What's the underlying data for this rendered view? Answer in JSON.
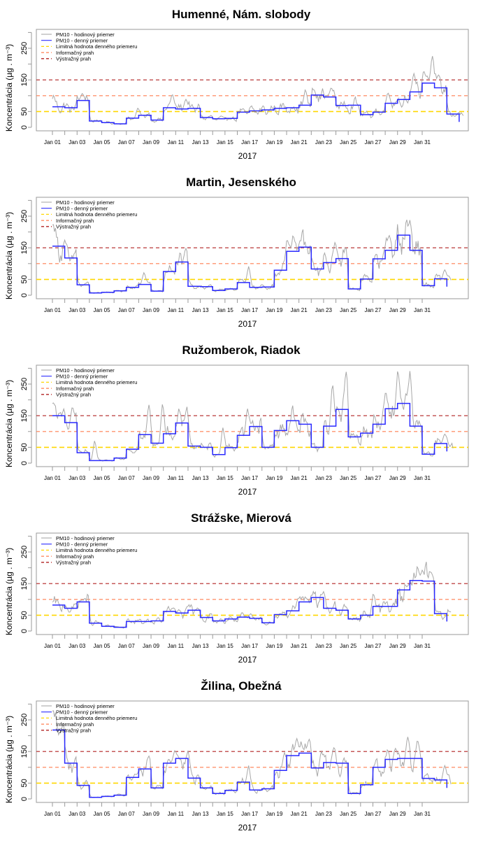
{
  "chart_data": [
    {
      "type": "line",
      "title": "Humenné, Nám. slobody",
      "xlabel": "2017",
      "ylabel": "Koncentrácia (µg . m⁻³)",
      "ylim": [
        0,
        310
      ],
      "yticks": [
        0,
        50,
        150,
        250
      ],
      "ytick_labels": [
        "0",
        "50",
        "150",
        "250"
      ],
      "xticks": [
        "Jan 01",
        "Jan 03",
        "Jan 05",
        "Jan 07",
        "Jan 09",
        "Jan 11",
        "Jan 13",
        "Jan 15",
        "Jan 17",
        "Jan 19",
        "Jan 21",
        "Jan 23",
        "Jan 25",
        "Jan 27",
        "Jan 29",
        "Jan 31"
      ],
      "x_range_days": [
        0,
        33
      ],
      "thresholds": [
        {
          "name": "Limitná hodnota denného priemeru",
          "value": 50,
          "color": "#ffd700"
        },
        {
          "name": "Informačný prah",
          "value": 100,
          "color": "#ff7f50"
        },
        {
          "name": "Výstražný prah",
          "value": 150,
          "color": "#b22222"
        }
      ],
      "daily_mean": [
        65,
        62,
        85,
        20,
        15,
        11,
        29,
        38,
        23,
        62,
        58,
        60,
        31,
        27,
        28,
        48,
        52,
        55,
        60,
        62,
        70,
        102,
        96,
        69,
        70,
        40,
        48,
        76,
        88,
        112,
        140,
        125,
        42
      ],
      "hourly_peaks": [
        {
          "day": 0.05,
          "value": 113
        },
        {
          "day": 2.4,
          "value": 112
        },
        {
          "day": 6.9,
          "value": 68
        },
        {
          "day": 9.7,
          "value": 115
        },
        {
          "day": 10.8,
          "value": 97
        },
        {
          "day": 20.5,
          "value": 128
        },
        {
          "day": 22.6,
          "value": 132
        },
        {
          "day": 27.2,
          "value": 118
        },
        {
          "day": 29.3,
          "value": 186
        },
        {
          "day": 30.8,
          "value": 248
        },
        {
          "day": 30.1,
          "value": 190
        }
      ],
      "hourly_end_day": 33.4
    },
    {
      "type": "line",
      "title": "Martin, Jesenského",
      "xlabel": "2017",
      "ylabel": "Koncentrácia (µg . m⁻³)",
      "ylim": [
        0,
        310
      ],
      "yticks": [
        0,
        50,
        150,
        250
      ],
      "ytick_labels": [
        "0",
        "50",
        "150",
        "250"
      ],
      "xticks": [
        "Jan 01",
        "Jan 03",
        "Jan 05",
        "Jan 07",
        "Jan 09",
        "Jan 11",
        "Jan 13",
        "Jan 15",
        "Jan 17",
        "Jan 19",
        "Jan 21",
        "Jan 23",
        "Jan 25",
        "Jan 27",
        "Jan 29",
        "Jan 31"
      ],
      "x_range_days": [
        0,
        33
      ],
      "thresholds": [
        {
          "name": "Limitná hodnota denného priemeru",
          "value": 50,
          "color": "#ffd700"
        },
        {
          "name": "Informačný prah",
          "value": 100,
          "color": "#ff7f50"
        },
        {
          "name": "Výstražný prah",
          "value": 150,
          "color": "#b22222"
        }
      ],
      "daily_mean": [
        155,
        118,
        33,
        7,
        9,
        14,
        25,
        34,
        13,
        75,
        105,
        28,
        27,
        15,
        20,
        40,
        25,
        26,
        79,
        139,
        152,
        83,
        103,
        116,
        20,
        51,
        115,
        142,
        190,
        142,
        30,
        52
      ],
      "hourly_peaks": [
        {
          "day": 0.0,
          "value": 258
        },
        {
          "day": 1.0,
          "value": 180
        },
        {
          "day": 7.4,
          "value": 80
        },
        {
          "day": 10.8,
          "value": 160
        },
        {
          "day": 15.9,
          "value": 103
        },
        {
          "day": 19.0,
          "value": 190
        },
        {
          "day": 20.1,
          "value": 180
        },
        {
          "day": 22.9,
          "value": 180
        },
        {
          "day": 27.3,
          "value": 200
        },
        {
          "day": 29.0,
          "value": 245
        },
        {
          "day": 31.8,
          "value": 88
        }
      ],
      "hourly_end_day": 32.4
    },
    {
      "type": "line",
      "title": "Ružomberok, Riadok",
      "xlabel": "2017",
      "ylabel": "Koncentrácia (µg . m⁻³)",
      "ylim": [
        0,
        310
      ],
      "yticks": [
        0,
        50,
        150,
        250
      ],
      "ytick_labels": [
        "0",
        "50",
        "150",
        "250"
      ],
      "xticks": [
        "Jan 01",
        "Jan 03",
        "Jan 05",
        "Jan 07",
        "Jan 09",
        "Jan 11",
        "Jan 13",
        "Jan 15",
        "Jan 17",
        "Jan 19",
        "Jan 21",
        "Jan 23",
        "Jan 25",
        "Jan 27",
        "Jan 29",
        "Jan 31"
      ],
      "x_range_days": [
        0,
        33
      ],
      "thresholds": [
        {
          "name": "Limitná hodnota denného priemeru",
          "value": 50,
          "color": "#ffd700"
        },
        {
          "name": "Informačný prah",
          "value": 100,
          "color": "#ff7f50"
        },
        {
          "name": "Výstražný prah",
          "value": 150,
          "color": "#b22222"
        }
      ],
      "daily_mean": [
        150,
        128,
        33,
        8,
        8,
        16,
        44,
        90,
        63,
        93,
        127,
        54,
        50,
        27,
        49,
        88,
        116,
        50,
        103,
        134,
        123,
        50,
        117,
        170,
        83,
        95,
        123,
        172,
        189,
        117,
        28,
        62
      ],
      "hourly_peaks": [
        {
          "day": 0.0,
          "value": 210
        },
        {
          "day": 1.6,
          "value": 190
        },
        {
          "day": 3.4,
          "value": 85
        },
        {
          "day": 7.8,
          "value": 210
        },
        {
          "day": 8.9,
          "value": 215
        },
        {
          "day": 10.9,
          "value": 190
        },
        {
          "day": 13.8,
          "value": 135
        },
        {
          "day": 15.8,
          "value": 195
        },
        {
          "day": 22.7,
          "value": 285
        },
        {
          "day": 23.8,
          "value": 320
        },
        {
          "day": 26.9,
          "value": 210
        },
        {
          "day": 28.0,
          "value": 315
        },
        {
          "day": 29.0,
          "value": 310
        },
        {
          "day": 31.8,
          "value": 100
        }
      ],
      "hourly_end_day": 32.5
    },
    {
      "type": "line",
      "title": "Strážske, Mierová",
      "xlabel": "2017",
      "ylabel": "Koncentrácia (µg . m⁻³)",
      "ylim": [
        0,
        310
      ],
      "yticks": [
        0,
        50,
        150,
        250
      ],
      "ytick_labels": [
        "0",
        "50",
        "150",
        "250"
      ],
      "xticks": [
        "Jan 01",
        "Jan 03",
        "Jan 05",
        "Jan 07",
        "Jan 09",
        "Jan 11",
        "Jan 13",
        "Jan 15",
        "Jan 17",
        "Jan 19",
        "Jan 21",
        "Jan 23",
        "Jan 25",
        "Jan 27",
        "Jan 29",
        "Jan 31"
      ],
      "x_range_days": [
        0,
        33
      ],
      "thresholds": [
        {
          "name": "Limitná hodnota denného priemeru",
          "value": 50,
          "color": "#ffd700"
        },
        {
          "name": "Informačný prah",
          "value": 100,
          "color": "#ff7f50"
        },
        {
          "name": "Výstražný prah",
          "value": 150,
          "color": "#b22222"
        }
      ],
      "daily_mean": [
        82,
        72,
        92,
        25,
        15,
        12,
        30,
        30,
        32,
        62,
        57,
        66,
        43,
        32,
        38,
        44,
        40,
        26,
        52,
        64,
        92,
        106,
        72,
        66,
        38,
        50,
        78,
        78,
        130,
        160,
        158,
        55
      ],
      "hourly_peaks": [
        {
          "day": 2.4,
          "value": 100
        },
        {
          "day": 9.8,
          "value": 75
        },
        {
          "day": 10.9,
          "value": 82
        },
        {
          "day": 19.9,
          "value": 112
        },
        {
          "day": 22.0,
          "value": 128
        },
        {
          "day": 26.0,
          "value": 130
        },
        {
          "day": 28.9,
          "value": 150
        },
        {
          "day": 30.0,
          "value": 198
        },
        {
          "day": 30.7,
          "value": 190
        }
      ],
      "hourly_end_day": 32.4
    },
    {
      "type": "line",
      "title": "Žilina, Obežná",
      "xlabel": "2017",
      "ylabel": "Koncentrácia (µg . m⁻³)",
      "ylim": [
        0,
        310
      ],
      "yticks": [
        0,
        50,
        150,
        250
      ],
      "ytick_labels": [
        "0",
        "50",
        "150",
        "250"
      ],
      "xticks": [
        "Jan 01",
        "Jan 03",
        "Jan 05",
        "Jan 07",
        "Jan 09",
        "Jan 11",
        "Jan 13",
        "Jan 15",
        "Jan 17",
        "Jan 19",
        "Jan 21",
        "Jan 23",
        "Jan 25",
        "Jan 27",
        "Jan 29",
        "Jan 31"
      ],
      "x_range_days": [
        0,
        33
      ],
      "thresholds": [
        {
          "name": "Limitná hodnota denného priemeru",
          "value": 50,
          "color": "#ffd700"
        },
        {
          "name": "Informačný prah",
          "value": 100,
          "color": "#ff7f50"
        },
        {
          "name": "Výstražný prah",
          "value": 150,
          "color": "#b22222"
        }
      ],
      "daily_mean": [
        218,
        113,
        43,
        5,
        8,
        12,
        68,
        95,
        35,
        113,
        128,
        66,
        35,
        17,
        27,
        53,
        28,
        32,
        90,
        137,
        145,
        98,
        115,
        113,
        17,
        45,
        100,
        125,
        128,
        128,
        65,
        60
      ],
      "hourly_peaks": [
        {
          "day": 0.0,
          "value": 310
        },
        {
          "day": 0.8,
          "value": 200
        },
        {
          "day": 7.8,
          "value": 145
        },
        {
          "day": 9.9,
          "value": 162
        },
        {
          "day": 11.0,
          "value": 158
        },
        {
          "day": 15.9,
          "value": 118
        },
        {
          "day": 18.8,
          "value": 162
        },
        {
          "day": 19.8,
          "value": 205
        },
        {
          "day": 20.8,
          "value": 200
        },
        {
          "day": 21.8,
          "value": 165
        },
        {
          "day": 22.8,
          "value": 175
        },
        {
          "day": 27.8,
          "value": 170
        },
        {
          "day": 28.8,
          "value": 215
        },
        {
          "day": 29.6,
          "value": 200
        },
        {
          "day": 31.8,
          "value": 118
        }
      ],
      "hourly_end_day": 32.4
    }
  ],
  "legend": {
    "position": "top-left",
    "items": [
      {
        "label": "PM10 - hodinový priemer",
        "color": "#a8a8a8",
        "style": "solid"
      },
      {
        "label": "PM10 - denný priemer",
        "color": "#2a2aff",
        "style": "solid"
      },
      {
        "label": "Limitná hodnota denného priemeru",
        "color": "#ffd700",
        "style": "dashed"
      },
      {
        "label": "Informačný prah",
        "color": "#ff7f50",
        "style": "dashed"
      },
      {
        "label": "Výstražný prah",
        "color": "#b22222",
        "style": "dashed"
      }
    ]
  },
  "colors": {
    "hourly": "#a8a8a8",
    "daily": "#2a2aff",
    "axis": "#9a9a9a",
    "text": "#000000"
  }
}
